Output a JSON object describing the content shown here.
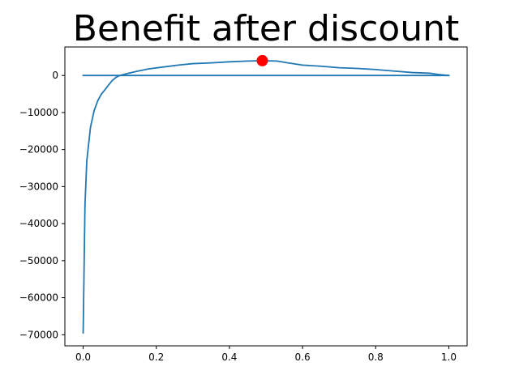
{
  "chart_data": {
    "type": "line",
    "title": "Benefit after discount",
    "xlabel": "",
    "ylabel": "",
    "xlim": [
      -0.05,
      1.05
    ],
    "ylim": [
      -73000,
      7700
    ],
    "x_ticks": [
      0.0,
      0.2,
      0.4,
      0.6,
      0.8,
      1.0
    ],
    "x_tick_labels": [
      "0.0",
      "0.2",
      "0.4",
      "0.6",
      "0.8",
      "1.0"
    ],
    "y_ticks": [
      0,
      -10000,
      -20000,
      -30000,
      -40000,
      -50000,
      -60000,
      -70000
    ],
    "y_tick_labels": [
      "0",
      "−10000",
      "−20000",
      "−30000",
      "−40000",
      "−50000",
      "−60000",
      "−70000"
    ],
    "grid": false,
    "line_color": "#1f77b4",
    "marker_color": "#ff0000",
    "series": [
      {
        "x": [
          0.0,
          0.005,
          0.01,
          0.02,
          0.03,
          0.04,
          0.05,
          0.06,
          0.07,
          0.08,
          0.09,
          0.1,
          0.12,
          0.15,
          0.18,
          0.22,
          0.26,
          0.3,
          0.35,
          0.4,
          0.45,
          0.49,
          0.53,
          0.56,
          0.6,
          0.65,
          0.7,
          0.75,
          0.8,
          0.85,
          0.9,
          0.95,
          0.97,
          1.0
        ],
        "y": [
          -69500,
          -35000,
          -23000,
          -14000,
          -9500,
          -6800,
          -5000,
          -3800,
          -2500,
          -1300,
          -500,
          0,
          500,
          1200,
          1800,
          2300,
          2800,
          3200,
          3400,
          3700,
          3900,
          4000,
          3900,
          3400,
          2800,
          2500,
          2100,
          1900,
          1600,
          1200,
          800,
          600,
          300,
          0
        ]
      },
      {
        "x": [
          0.0,
          1.0
        ],
        "y": [
          0,
          0
        ]
      }
    ],
    "markers": [
      {
        "x": 0.49,
        "y": 4000
      }
    ]
  }
}
